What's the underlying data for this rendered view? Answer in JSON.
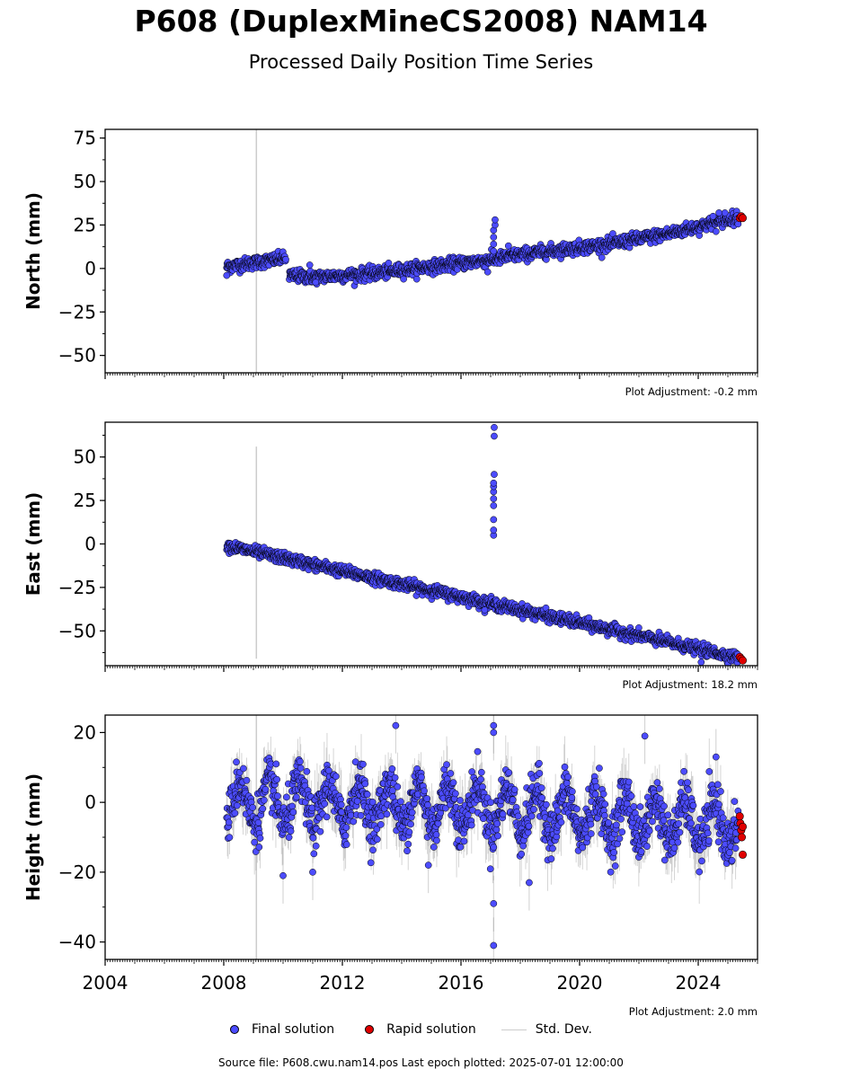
{
  "title": "P608 (DuplexMineCS2008) NAM14",
  "subtitle": "Processed Daily Position Time Series",
  "footer": "Source file: P608.cwu.nam14.pos  Last epoch plotted: 2025-07-01 12:00:00",
  "legend": {
    "final": "Final solution",
    "rapid": "Rapid solution",
    "std": "Std. Dev."
  },
  "colors": {
    "final": "#4c4cff",
    "rapid": "#e00000",
    "std": "#cccccc",
    "outline": "#000000"
  },
  "chart_data": [
    {
      "type": "scatter",
      "ylabel": "North (mm)",
      "adjustment": "Plot Adjustment: -0.2 mm",
      "xlim": [
        2004,
        2026
      ],
      "ylim": [
        -60,
        80
      ],
      "yticks": [
        -50,
        -25,
        0,
        25,
        50,
        75
      ],
      "ytick_labels": [
        "−50",
        "−25",
        "0",
        "25",
        "50",
        "75"
      ],
      "trend": [
        [
          2008.1,
          1
        ],
        [
          2010.1,
          6
        ],
        [
          2010.2,
          -4
        ],
        [
          2011.0,
          -5
        ],
        [
          2012.0,
          -4
        ],
        [
          2013.0,
          -3
        ],
        [
          2014.0,
          -1
        ],
        [
          2015.0,
          1
        ],
        [
          2016.0,
          3
        ],
        [
          2017.0,
          5
        ],
        [
          2018.0,
          8
        ],
        [
          2019.0,
          10
        ],
        [
          2020.0,
          12
        ],
        [
          2021.0,
          14
        ],
        [
          2022.0,
          17
        ],
        [
          2023.0,
          20
        ],
        [
          2024.0,
          24
        ],
        [
          2025.2,
          29
        ]
      ],
      "scatter_sd": 1.8,
      "outliers": [
        [
          2008.1,
          -4
        ],
        [
          2010.9,
          2
        ],
        [
          2011.1,
          -8
        ],
        [
          2017.1,
          10
        ],
        [
          2017.1,
          14
        ],
        [
          2017.1,
          18
        ],
        [
          2017.1,
          22
        ],
        [
          2017.15,
          25
        ],
        [
          2017.15,
          28
        ],
        [
          2017.6,
          13
        ],
        [
          2016.9,
          -2
        ],
        [
          2024.5,
          30
        ],
        [
          2024.7,
          32
        ],
        [
          2024.9,
          32
        ]
      ],
      "rapid": [
        [
          2025.4,
          29
        ],
        [
          2025.45,
          30
        ],
        [
          2025.5,
          29
        ]
      ],
      "vline": 2009.1,
      "vline_range": [
        -60,
        80
      ]
    },
    {
      "type": "scatter",
      "ylabel": "East (mm)",
      "adjustment": "Plot Adjustment: 18.2 mm",
      "xlim": [
        2004,
        2026
      ],
      "ylim": [
        -70,
        70
      ],
      "yticks": [
        -50,
        -25,
        0,
        25,
        50
      ],
      "ytick_labels": [
        "−50",
        "−25",
        "0",
        "25",
        "50"
      ],
      "trend": [
        [
          2008.1,
          -1
        ],
        [
          2025.5,
          -66
        ]
      ],
      "scatter_sd": 1.6,
      "outliers": [
        [
          2017.1,
          5
        ],
        [
          2017.1,
          8
        ],
        [
          2017.1,
          14
        ],
        [
          2017.1,
          22
        ],
        [
          2017.1,
          26
        ],
        [
          2017.1,
          30
        ],
        [
          2017.1,
          33
        ],
        [
          2017.1,
          35
        ],
        [
          2017.12,
          40
        ],
        [
          2017.12,
          62
        ],
        [
          2017.12,
          67
        ],
        [
          2024.1,
          -68
        ],
        [
          2016.8,
          -38
        ]
      ],
      "rapid": [
        [
          2025.4,
          -65
        ],
        [
          2025.45,
          -66
        ],
        [
          2025.5,
          -67
        ]
      ],
      "vline": 2009.1,
      "vline_range": [
        -66,
        56
      ]
    },
    {
      "type": "scatter",
      "ylabel": "Height (mm)",
      "adjustment": "Plot Adjustment: 2.0 mm",
      "xlim": [
        2004,
        2026
      ],
      "ylim": [
        -45,
        25
      ],
      "yticks": [
        -40,
        -20,
        0,
        20
      ],
      "ytick_labels": [
        "−40",
        "−20",
        "0",
        "20"
      ],
      "xticks": [
        2004,
        2008,
        2012,
        2016,
        2020,
        2024
      ],
      "xtick_labels": [
        "2004",
        "2008",
        "2012",
        "2016",
        "2020",
        "2024"
      ],
      "trend": [
        [
          2008.1,
          0
        ],
        [
          2016.0,
          -1
        ],
        [
          2025.5,
          -7
        ]
      ],
      "seasonal_amp": 6,
      "scatter_sd": 3.5,
      "outliers": [
        [
          2010.0,
          -21
        ],
        [
          2011.0,
          -20
        ],
        [
          2017.1,
          -29
        ],
        [
          2017.1,
          -41
        ],
        [
          2017.1,
          20
        ],
        [
          2017.1,
          22
        ],
        [
          2013.8,
          22
        ],
        [
          2014.9,
          -18
        ],
        [
          2022.2,
          19
        ],
        [
          2018.3,
          -23
        ],
        [
          2024.6,
          13
        ]
      ],
      "rapid": [
        [
          2025.4,
          -4
        ],
        [
          2025.42,
          -6
        ],
        [
          2025.45,
          -8
        ],
        [
          2025.47,
          -10
        ],
        [
          2025.5,
          -15
        ],
        [
          2025.5,
          -7
        ]
      ],
      "vline": 2009.1,
      "vline_range": [
        -45,
        25
      ]
    }
  ]
}
